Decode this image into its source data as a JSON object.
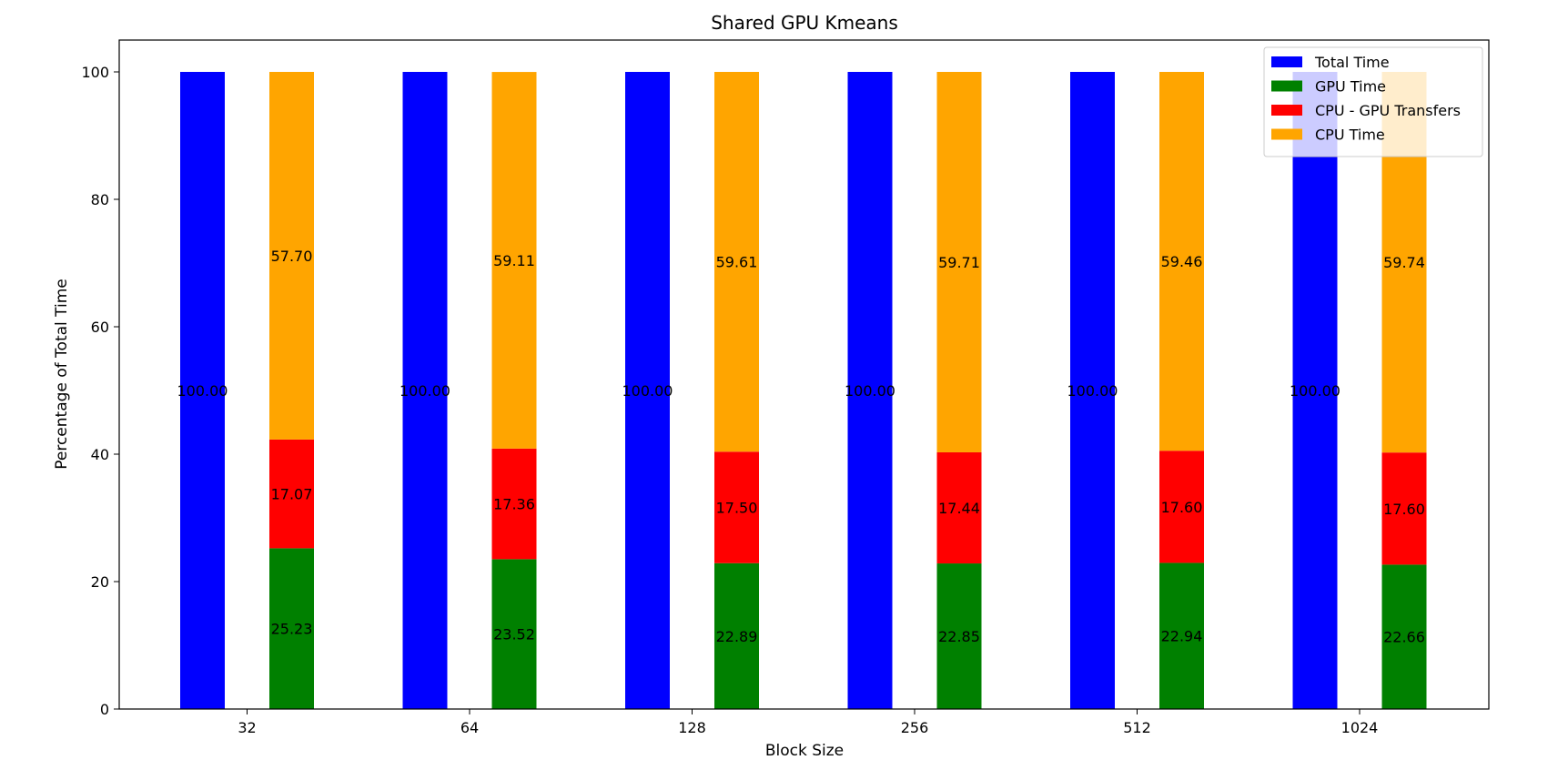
{
  "chart_data": {
    "type": "bar",
    "title": "Shared GPU Kmeans",
    "xlabel": "Block Size",
    "ylabel": "Percentage of Total Time",
    "categories": [
      "32",
      "64",
      "128",
      "256",
      "512",
      "1024"
    ],
    "ylim": [
      0,
      105
    ],
    "yticks": [
      "0",
      "20",
      "40",
      "60",
      "80",
      "100"
    ],
    "grid": false,
    "legend_position": "top-right",
    "series": [
      {
        "name": "Total Time",
        "color": "#0000ff",
        "group": "total",
        "values": [
          100.0,
          100.0,
          100.0,
          100.0,
          100.0,
          100.0
        ],
        "labels": [
          "100.00",
          "100.00",
          "100.00",
          "100.00",
          "100.00",
          "100.00"
        ]
      },
      {
        "name": "GPU Time",
        "color": "#008000",
        "group": "stacked",
        "values": [
          25.23,
          23.52,
          22.89,
          22.85,
          22.94,
          22.66
        ],
        "labels": [
          "25.23",
          "23.52",
          "22.89",
          "22.85",
          "22.94",
          "22.66"
        ]
      },
      {
        "name": "CPU - GPU Transfers",
        "color": "#ff0000",
        "group": "stacked",
        "values": [
          17.07,
          17.36,
          17.5,
          17.44,
          17.6,
          17.6
        ],
        "labels": [
          "17.07",
          "17.36",
          "17.50",
          "17.44",
          "17.60",
          "17.60"
        ]
      },
      {
        "name": "CPU Time",
        "color": "#ffa500",
        "group": "stacked",
        "values": [
          57.7,
          59.11,
          59.61,
          59.71,
          59.46,
          59.74
        ],
        "labels": [
          "57.70",
          "59.11",
          "59.61",
          "59.71",
          "59.46",
          "59.74"
        ]
      }
    ]
  }
}
